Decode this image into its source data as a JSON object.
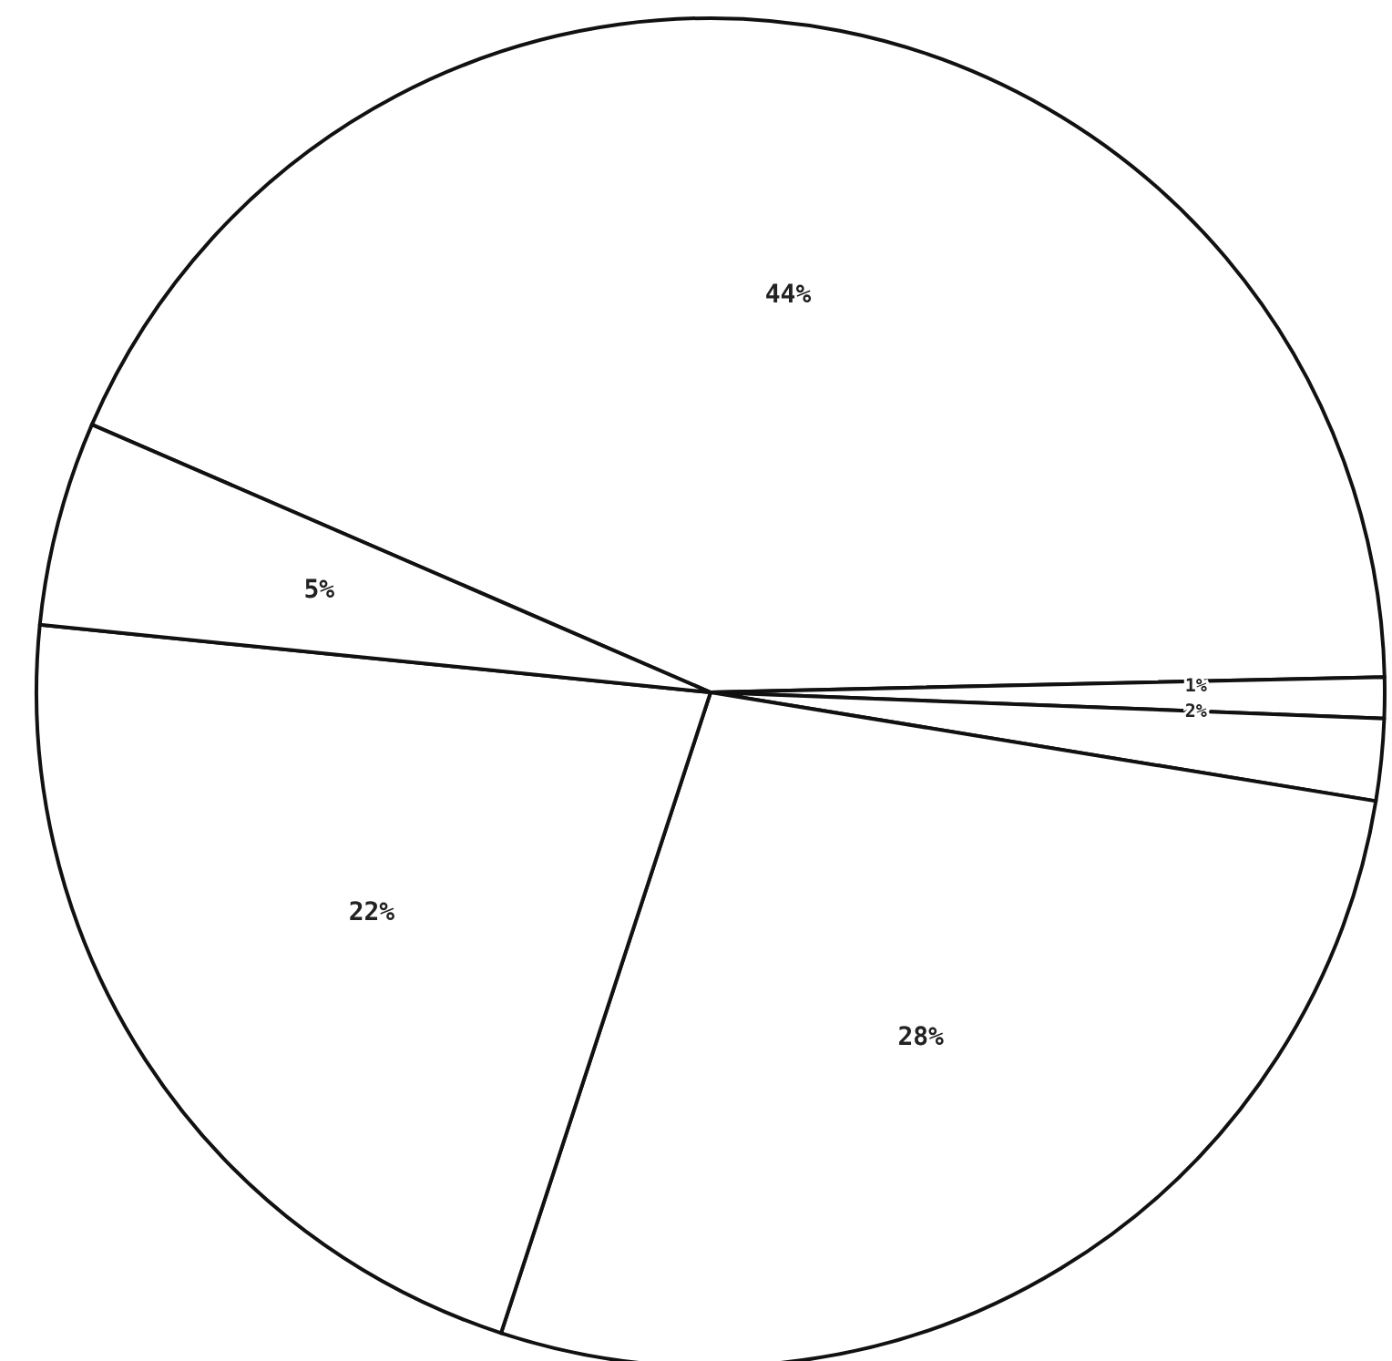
{
  "chart_data": {
    "type": "pie",
    "categories": [
      null,
      null,
      null,
      null,
      null,
      null
    ],
    "values": [
      44,
      1,
      2,
      28,
      22,
      5
    ],
    "colors": [
      "#ffffff",
      "#ffffff",
      "#ffffff",
      "#ffffff",
      "#ffffff",
      "#ffffff"
    ],
    "value_labels": [
      "44%",
      "1%",
      "2%",
      "28%",
      "22%",
      "5%"
    ]
  }
}
